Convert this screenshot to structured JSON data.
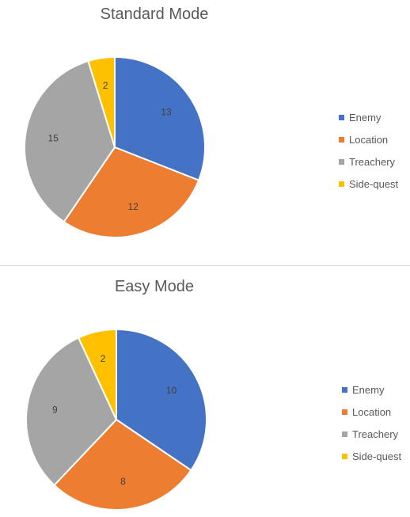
{
  "chart_data": [
    {
      "type": "pie",
      "title": "Standard Mode",
      "categories": [
        "Enemy",
        "Location",
        "Treachery",
        "Side-quest"
      ],
      "values": [
        13,
        12,
        15,
        2
      ],
      "colors": [
        "#4472c4",
        "#ed7d31",
        "#a5a5a5",
        "#ffc000"
      ],
      "legend_position": "right"
    },
    {
      "type": "pie",
      "title": "Easy Mode",
      "categories": [
        "Enemy",
        "Location",
        "Treachery",
        "Side-quest"
      ],
      "values": [
        10,
        8,
        9,
        2
      ],
      "colors": [
        "#4472c4",
        "#ed7d31",
        "#a5a5a5",
        "#ffc000"
      ],
      "legend_position": "right"
    }
  ]
}
